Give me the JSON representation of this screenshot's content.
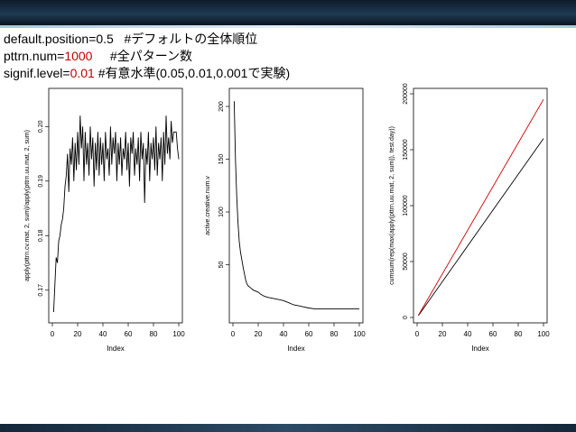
{
  "slide": {
    "lines": [
      {
        "name": "default.position",
        "eq": "=",
        "value": "0.5",
        "comment": "   #デフォルトの全体順位",
        "value_red": false
      },
      {
        "name": "pttrn.num",
        "eq": "=",
        "value": "1000",
        "comment": "     #全パターン数",
        "value_red": true
      },
      {
        "name": "signif.level",
        "eq": "=",
        "value": "0.01",
        "comment": " #有意水準(0.05,0.01,0.001で実験)",
        "value_red": true
      }
    ]
  },
  "colors": {
    "accent_red": "#c00000",
    "series_black": "#000000",
    "series_red": "#cc0000"
  },
  "chart_data": [
    {
      "type": "line",
      "xlabel": "Index",
      "ylabel": "apply(pttrn.cv.mat, 2, sum)/apply(pttrn.uu.mat, 2, sum)",
      "xlim": [
        0,
        100
      ],
      "ylim": [
        0.165,
        0.206
      ],
      "xticks": [
        "0",
        "20",
        "40",
        "60",
        "80",
        "100"
      ],
      "yticks": [
        {
          "v": 0.17,
          "label": "0.17"
        },
        {
          "v": 0.18,
          "label": "0.18"
        },
        {
          "v": 0.19,
          "label": "0.19"
        },
        {
          "v": 0.2,
          "label": "0.20"
        }
      ],
      "series": [
        {
          "x": [
            1,
            2,
            3,
            4,
            5,
            6,
            7,
            8,
            9,
            10,
            11,
            12,
            13,
            14,
            15,
            16,
            17,
            18,
            19,
            20,
            21,
            22,
            23,
            24,
            25,
            26,
            27,
            28,
            29,
            30,
            31,
            32,
            33,
            34,
            35,
            36,
            37,
            38,
            39,
            40,
            41,
            42,
            43,
            44,
            45,
            46,
            47,
            48,
            49,
            50,
            51,
            52,
            53,
            54,
            55,
            56,
            57,
            58,
            59,
            60,
            61,
            62,
            63,
            64,
            65,
            66,
            67,
            68,
            69,
            70,
            71,
            72,
            73,
            74,
            75,
            76,
            77,
            78,
            79,
            80,
            81,
            82,
            83,
            84,
            85,
            86,
            87,
            88,
            89,
            90,
            91,
            92,
            93,
            94,
            95,
            96,
            97,
            98,
            99,
            100
          ],
          "y": [
            0.166,
            0.171,
            0.176,
            0.175,
            0.179,
            0.18,
            0.182,
            0.183,
            0.185,
            0.189,
            0.191,
            0.195,
            0.188,
            0.196,
            0.193,
            0.198,
            0.19,
            0.197,
            0.192,
            0.199,
            0.193,
            0.202,
            0.196,
            0.2,
            0.19,
            0.199,
            0.193,
            0.197,
            0.191,
            0.2,
            0.194,
            0.198,
            0.189,
            0.197,
            0.192,
            0.199,
            0.191,
            0.198,
            0.193,
            0.197,
            0.19,
            0.199,
            0.194,
            0.196,
            0.191,
            0.2,
            0.193,
            0.198,
            0.195,
            0.199,
            0.19,
            0.197,
            0.193,
            0.198,
            0.191,
            0.196,
            0.194,
            0.199,
            0.192,
            0.197,
            0.189,
            0.198,
            0.195,
            0.199,
            0.191,
            0.196,
            0.193,
            0.198,
            0.19,
            0.199,
            0.194,
            0.197,
            0.186,
            0.196,
            0.193,
            0.199,
            0.19,
            0.197,
            0.194,
            0.198,
            0.192,
            0.2,
            0.191,
            0.197,
            0.194,
            0.198,
            0.19,
            0.199,
            0.193,
            0.202,
            0.195,
            0.198,
            0.194,
            0.201,
            0.197,
            0.199,
            0.199,
            0.199,
            0.196,
            0.194
          ]
        }
      ]
    },
    {
      "type": "line",
      "xlabel": "Index",
      "ylabel": "active.creative.num.v",
      "xlim": [
        0,
        100
      ],
      "ylim": [
        0,
        212
      ],
      "xticks": [
        "0",
        "20",
        "40",
        "60",
        "80",
        "100"
      ],
      "yticks": [
        {
          "v": 50,
          "label": "50"
        },
        {
          "v": 100,
          "label": "100"
        },
        {
          "v": 150,
          "label": "150"
        },
        {
          "v": 200,
          "label": "200"
        }
      ],
      "series": [
        {
          "x": [
            1,
            2,
            3,
            4,
            5,
            6,
            7,
            8,
            9,
            10,
            11,
            12,
            14,
            16,
            18,
            20,
            22,
            25,
            28,
            32,
            36,
            40,
            44,
            48,
            52,
            56,
            60,
            65,
            70,
            75,
            80,
            85,
            90,
            95,
            100
          ],
          "y": [
            205,
            150,
            115,
            90,
            72,
            62,
            55,
            48,
            42,
            36,
            32,
            30,
            28,
            26,
            25,
            24,
            22,
            20,
            19,
            18,
            17,
            16,
            14,
            12,
            11,
            10,
            9,
            8,
            8,
            8,
            8,
            8,
            8,
            8,
            8
          ]
        }
      ]
    },
    {
      "type": "line",
      "xlabel": "Index",
      "ylabel": "cumsum(rep(max(apply(pttrn.uu.mat, 2, sum)), test.day))",
      "xlim": [
        0,
        100
      ],
      "ylim": [
        0,
        200000
      ],
      "xticks": [
        "0",
        "20",
        "40",
        "60",
        "80",
        "100"
      ],
      "yticks": [
        {
          "v": 0,
          "label": "0"
        },
        {
          "v": 50000,
          "label": "50000"
        },
        {
          "v": 100000,
          "label": "100000"
        },
        {
          "v": 150000,
          "label": "150000"
        },
        {
          "v": 200000,
          "label": "200000"
        }
      ],
      "series": [
        {
          "color": "#000000",
          "x": [
            1,
            100
          ],
          "y": [
            1600,
            160000
          ]
        },
        {
          "color": "#cc0000",
          "x": [
            1,
            100
          ],
          "y": [
            1950,
            195000
          ]
        }
      ]
    }
  ]
}
